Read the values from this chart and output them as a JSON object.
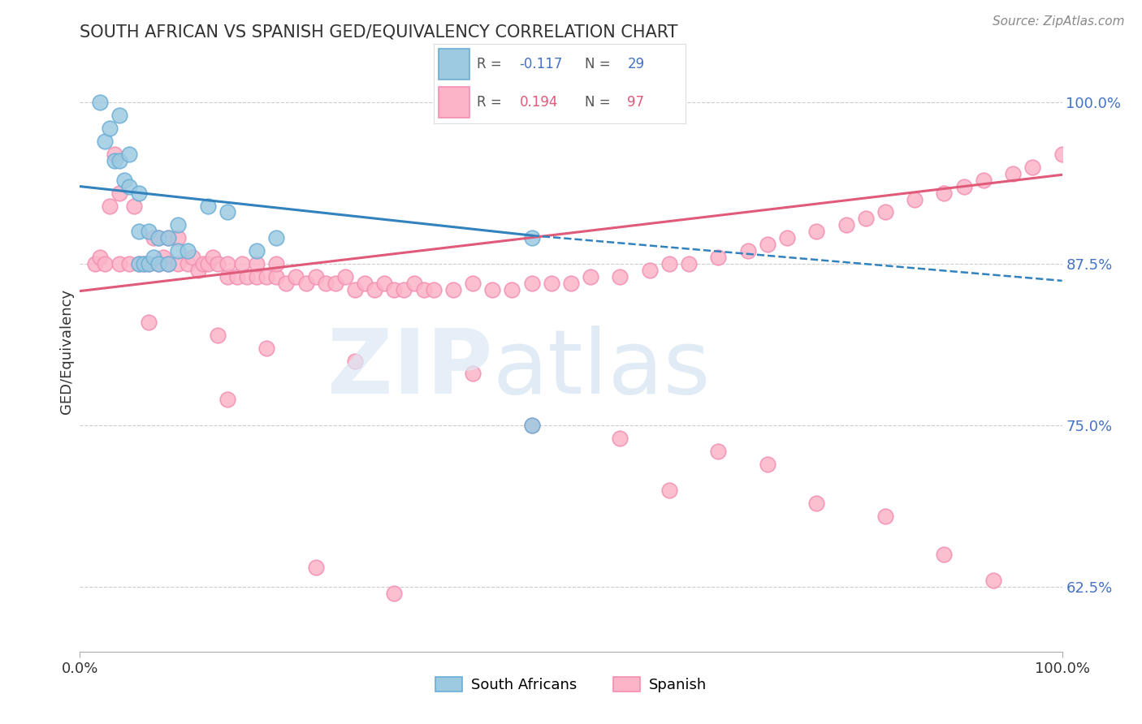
{
  "title": "SOUTH AFRICAN VS SPANISH GED/EQUIVALENCY CORRELATION CHART",
  "source_text": "Source: ZipAtlas.com",
  "ylabel": "GED/Equivalency",
  "y_ticks": [
    0.625,
    0.75,
    0.875,
    1.0
  ],
  "y_tick_labels": [
    "62.5%",
    "75.0%",
    "87.5%",
    "100.0%"
  ],
  "xlim": [
    0.0,
    1.0
  ],
  "ylim": [
    0.575,
    1.04
  ],
  "blue_line_color": "#3182bd",
  "pink_line_color": "#e05a7a",
  "blue_scatter_color": "#9ecae1",
  "pink_scatter_color": "#fcb4c8",
  "blue_scatter_edge": "#6baed6",
  "pink_scatter_edge": "#f48fb1",
  "blue_line_start_x": 0.0,
  "blue_line_start_y": 0.935,
  "blue_line_solid_end_x": 0.46,
  "blue_line_solid_end_y": 0.897,
  "blue_line_end_x": 1.0,
  "blue_line_end_y": 0.862,
  "pink_line_start_x": 0.0,
  "pink_line_start_y": 0.854,
  "pink_line_end_x": 1.0,
  "pink_line_end_y": 0.944,
  "blue_scatter_x": [
    0.02,
    0.025,
    0.03,
    0.035,
    0.04,
    0.04,
    0.045,
    0.05,
    0.05,
    0.06,
    0.06,
    0.06,
    0.065,
    0.07,
    0.07,
    0.075,
    0.08,
    0.08,
    0.09,
    0.09,
    0.1,
    0.1,
    0.11,
    0.13,
    0.15,
    0.18,
    0.2,
    0.46,
    0.46
  ],
  "blue_scatter_y": [
    1.0,
    0.97,
    0.98,
    0.955,
    0.955,
    0.99,
    0.94,
    0.935,
    0.96,
    0.875,
    0.9,
    0.93,
    0.875,
    0.875,
    0.9,
    0.88,
    0.875,
    0.895,
    0.875,
    0.895,
    0.885,
    0.905,
    0.885,
    0.92,
    0.915,
    0.885,
    0.895,
    0.895,
    0.75
  ],
  "pink_scatter_x": [
    0.015,
    0.02,
    0.025,
    0.03,
    0.035,
    0.04,
    0.04,
    0.05,
    0.055,
    0.06,
    0.065,
    0.07,
    0.075,
    0.08,
    0.08,
    0.085,
    0.09,
    0.09,
    0.1,
    0.1,
    0.11,
    0.115,
    0.12,
    0.125,
    0.13,
    0.135,
    0.14,
    0.15,
    0.15,
    0.16,
    0.165,
    0.17,
    0.18,
    0.18,
    0.19,
    0.2,
    0.2,
    0.21,
    0.22,
    0.23,
    0.24,
    0.25,
    0.26,
    0.27,
    0.28,
    0.29,
    0.3,
    0.31,
    0.32,
    0.33,
    0.34,
    0.35,
    0.36,
    0.38,
    0.4,
    0.42,
    0.44,
    0.46,
    0.48,
    0.5,
    0.52,
    0.55,
    0.58,
    0.6,
    0.62,
    0.65,
    0.68,
    0.7,
    0.72,
    0.75,
    0.78,
    0.8,
    0.82,
    0.85,
    0.88,
    0.9,
    0.92,
    0.95,
    0.97,
    1.0,
    0.14,
    0.19,
    0.28,
    0.4,
    0.46,
    0.55,
    0.6,
    0.65,
    0.7,
    0.75,
    0.82,
    0.88,
    0.93,
    0.07,
    0.15,
    0.24,
    0.32
  ],
  "pink_scatter_y": [
    0.875,
    0.88,
    0.875,
    0.92,
    0.96,
    0.875,
    0.93,
    0.875,
    0.92,
    0.875,
    0.875,
    0.875,
    0.895,
    0.875,
    0.895,
    0.88,
    0.875,
    0.895,
    0.875,
    0.895,
    0.875,
    0.88,
    0.87,
    0.875,
    0.875,
    0.88,
    0.875,
    0.865,
    0.875,
    0.865,
    0.875,
    0.865,
    0.865,
    0.875,
    0.865,
    0.865,
    0.875,
    0.86,
    0.865,
    0.86,
    0.865,
    0.86,
    0.86,
    0.865,
    0.855,
    0.86,
    0.855,
    0.86,
    0.855,
    0.855,
    0.86,
    0.855,
    0.855,
    0.855,
    0.86,
    0.855,
    0.855,
    0.86,
    0.86,
    0.86,
    0.865,
    0.865,
    0.87,
    0.875,
    0.875,
    0.88,
    0.885,
    0.89,
    0.895,
    0.9,
    0.905,
    0.91,
    0.915,
    0.925,
    0.93,
    0.935,
    0.94,
    0.945,
    0.95,
    0.96,
    0.82,
    0.81,
    0.8,
    0.79,
    0.75,
    0.74,
    0.7,
    0.73,
    0.72,
    0.69,
    0.68,
    0.65,
    0.63,
    0.83,
    0.77,
    0.64,
    0.62
  ]
}
